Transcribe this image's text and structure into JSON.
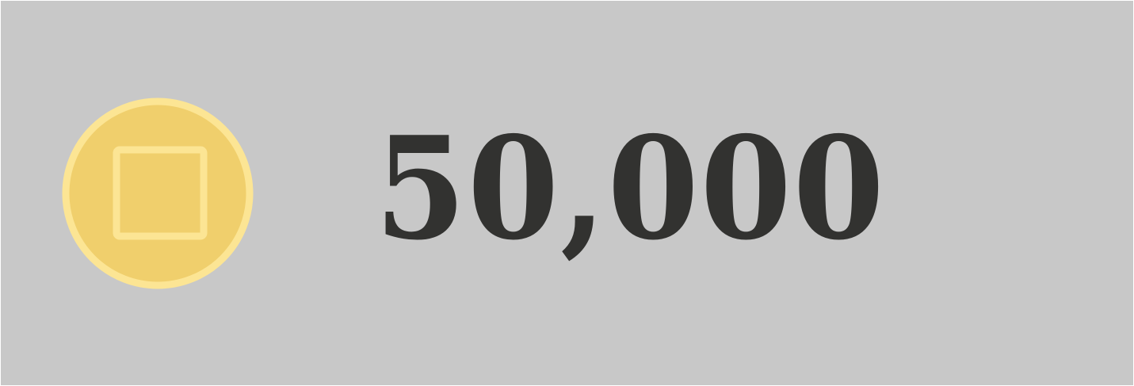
{
  "balance": {
    "amount": "50,000",
    "coin_icon": "coin-icon",
    "colors": {
      "background": "#c8c8c8",
      "coin_fill": "#f0cf6c",
      "coin_rim": "#fce594",
      "text": "#323230"
    }
  }
}
